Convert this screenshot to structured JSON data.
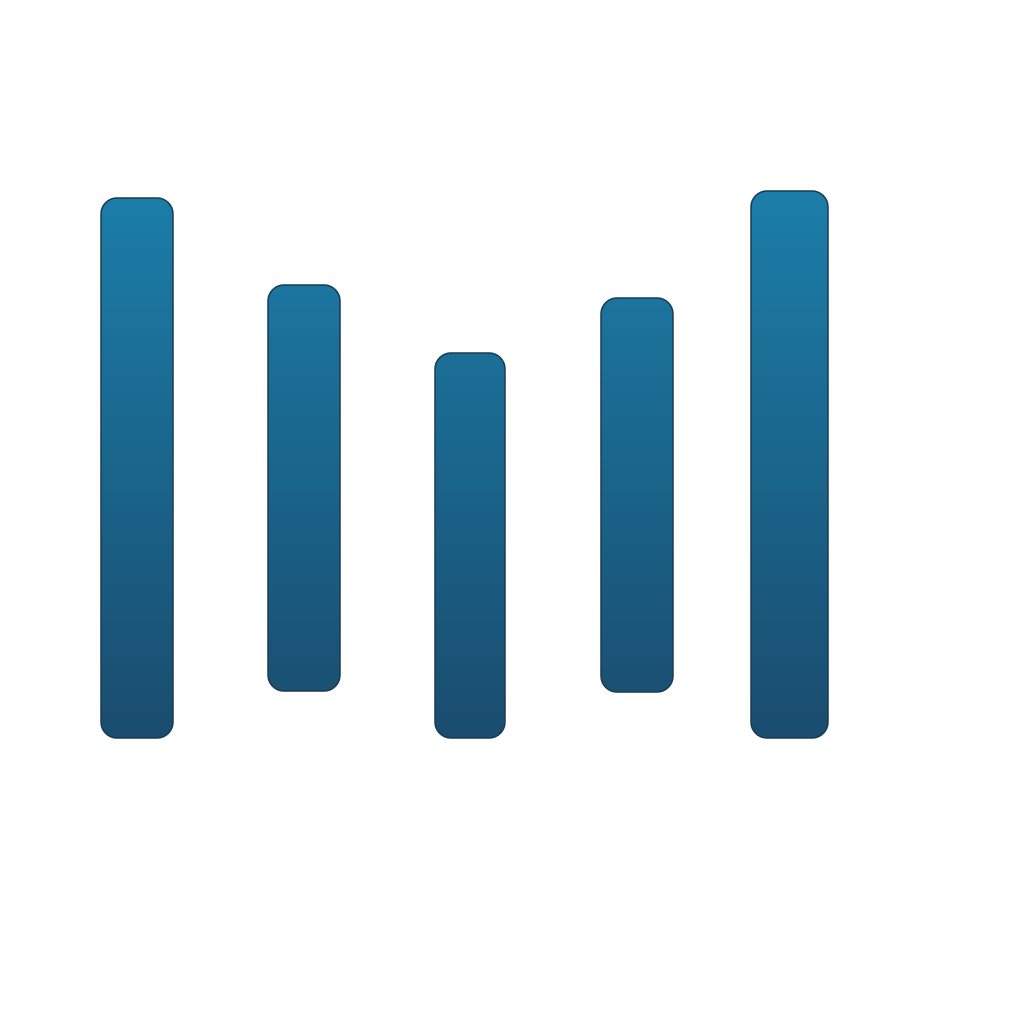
{
  "graphic": {
    "bar_count": 5,
    "bars": [
      {
        "position": 1
      },
      {
        "position": 2
      },
      {
        "position": 3
      },
      {
        "position": 4
      },
      {
        "position": 5
      }
    ],
    "colors": {
      "background": "#ffffff",
      "gradient_top": "#1b7ea9",
      "gradient_bottom": "#1a4c6e",
      "outline": "#1a3a52"
    }
  }
}
